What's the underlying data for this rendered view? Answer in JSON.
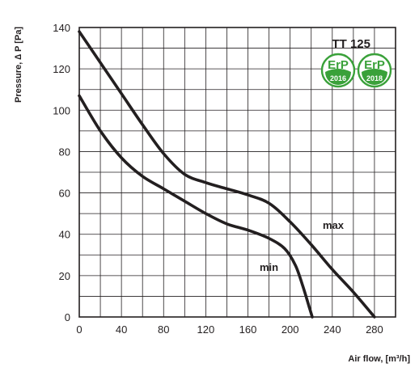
{
  "chart_data": {
    "type": "line",
    "title": "TT 125",
    "xlabel": "Air flow, [m³/h]",
    "ylabel": "Pressure, ∆ P [Pa]",
    "xlim": [
      0,
      300
    ],
    "ylim": [
      0,
      140
    ],
    "x_ticks": [
      0,
      40,
      80,
      120,
      160,
      200,
      240,
      280
    ],
    "y_ticks": [
      0,
      20,
      40,
      60,
      80,
      100,
      120,
      140
    ],
    "grid": true,
    "series": [
      {
        "name": "max",
        "color": "#231f20",
        "points": [
          [
            0,
            138
          ],
          [
            20,
            123
          ],
          [
            40,
            108
          ],
          [
            60,
            93
          ],
          [
            80,
            79
          ],
          [
            100,
            69
          ],
          [
            120,
            65
          ],
          [
            140,
            62
          ],
          [
            160,
            59
          ],
          [
            180,
            55
          ],
          [
            200,
            46
          ],
          [
            220,
            35
          ],
          [
            240,
            23
          ],
          [
            260,
            12
          ],
          [
            280,
            0
          ]
        ]
      },
      {
        "name": "min",
        "color": "#231f20",
        "points": [
          [
            0,
            107
          ],
          [
            20,
            90
          ],
          [
            40,
            77
          ],
          [
            60,
            68
          ],
          [
            80,
            62
          ],
          [
            100,
            56
          ],
          [
            120,
            50
          ],
          [
            140,
            45
          ],
          [
            160,
            42
          ],
          [
            180,
            38
          ],
          [
            195,
            33
          ],
          [
            205,
            25
          ],
          [
            212,
            15
          ],
          [
            218,
            5
          ],
          [
            221,
            0
          ]
        ]
      }
    ],
    "badges": [
      {
        "brand": "ErP",
        "year": "2016",
        "color": "#3aa13a"
      },
      {
        "brand": "ErP",
        "year": "2018",
        "color": "#3aa13a"
      }
    ]
  }
}
